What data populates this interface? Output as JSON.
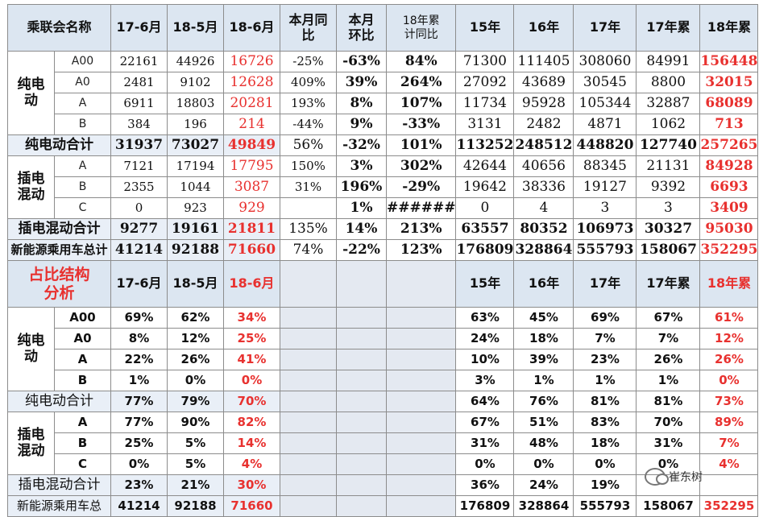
{
  "top_table": {
    "header": [
      "乘联会名称",
      "17-6月",
      "18-5月",
      "18-6月",
      "本月同\n比",
      "本月\n环比",
      "18年累\n计同比",
      "15年",
      "16年",
      "17年",
      "17年累",
      "18年累"
    ],
    "groups": [
      {
        "label": "纯电\n动",
        "rows": [
          {
            "sub": "A00",
            "values": [
              "22161",
              "44926",
              "16726",
              "-25%",
              "-63%",
              "84%",
              "71300",
              "111405",
              "308060",
              "84991",
              "156448"
            ]
          },
          {
            "sub": "A0",
            "values": [
              "2481",
              "9102",
              "12628",
              "409%",
              "39%",
              "264%",
              "27092",
              "43689",
              "30545",
              "8800",
              "32015"
            ]
          },
          {
            "sub": "A",
            "values": [
              "6911",
              "18803",
              "20281",
              "193%",
              "8%",
              "107%",
              "11734",
              "95928",
              "105344",
              "32887",
              "68089"
            ]
          },
          {
            "sub": "B",
            "values": [
              "384",
              "196",
              "214",
              "-44%",
              "9%",
              "-33%",
              "3131",
              "2482",
              "4871",
              "1062",
              "713"
            ]
          }
        ]
      }
    ],
    "bev_total": {
      "label": "纯电动合计",
      "values": [
        "31937",
        "73027",
        "49849",
        "56%",
        "-32%",
        "101%",
        "113252",
        "248512",
        "448820",
        "127740",
        "257265"
      ]
    },
    "phev": {
      "label": "插电\n混动",
      "rows": [
        {
          "sub": "A",
          "values": [
            "7121",
            "17194",
            "17795",
            "150%",
            "3%",
            "302%",
            "42644",
            "40656",
            "88345",
            "21131",
            "84928"
          ]
        },
        {
          "sub": "B",
          "values": [
            "2355",
            "1044",
            "3087",
            "31%",
            "196%",
            "-29%",
            "19642",
            "38336",
            "19127",
            "9392",
            "6693"
          ]
        },
        {
          "sub": "C",
          "values": [
            "0",
            "923",
            "929",
            "",
            "1%",
            "######",
            "0",
            "4",
            "3",
            "3",
            "3409"
          ]
        }
      ]
    },
    "phev_total": {
      "label": "插电混动合计",
      "values": [
        "9277",
        "19161",
        "21811",
        "135%",
        "14%",
        "213%",
        "63557",
        "80352",
        "106973",
        "30327",
        "95030"
      ]
    },
    "nev_total": {
      "label": "新能源乘用车总计",
      "values": [
        "41214",
        "92188",
        "71660",
        "74%",
        "-22%",
        "123%",
        "176809",
        "328864",
        "555793",
        "158067",
        "352295"
      ]
    }
  },
  "bottom_table": {
    "title": "占比结构\n分析",
    "header": [
      "17-6月",
      "18-5月",
      "18-6月",
      "15年",
      "16年",
      "17年",
      "17年累",
      "18年累"
    ],
    "bev": {
      "label": "纯电\n动",
      "rows": [
        {
          "sub": "A00",
          "a": [
            "69%",
            "62%",
            "34%"
          ],
          "b": [
            "63%",
            "45%",
            "69%",
            "67%",
            "61%"
          ]
        },
        {
          "sub": "A0",
          "a": [
            "8%",
            "12%",
            "25%"
          ],
          "b": [
            "24%",
            "18%",
            "7%",
            "7%",
            "12%"
          ]
        },
        {
          "sub": "A",
          "a": [
            "22%",
            "26%",
            "41%"
          ],
          "b": [
            "10%",
            "39%",
            "23%",
            "26%",
            "26%"
          ]
        },
        {
          "sub": "B",
          "a": [
            "1%",
            "0%",
            "0%"
          ],
          "b": [
            "3%",
            "1%",
            "1%",
            "1%",
            "0%"
          ]
        }
      ]
    },
    "bev_total": {
      "label": "纯电动合计",
      "a": [
        "77%",
        "79%",
        "70%"
      ],
      "b": [
        "64%",
        "76%",
        "81%",
        "81%",
        "73%"
      ]
    },
    "phev": {
      "label": "插电\n混动",
      "rows": [
        {
          "sub": "A",
          "a": [
            "77%",
            "90%",
            "82%"
          ],
          "b": [
            "67%",
            "51%",
            "83%",
            "70%",
            "89%"
          ]
        },
        {
          "sub": "B",
          "a": [
            "25%",
            "5%",
            "14%"
          ],
          "b": [
            "31%",
            "48%",
            "18%",
            "31%",
            "7%"
          ]
        },
        {
          "sub": "C",
          "a": [
            "0%",
            "5%",
            "4%"
          ],
          "b": [
            "0%",
            "0%",
            "0%",
            "0%",
            "4%"
          ]
        }
      ]
    },
    "phev_total": {
      "label": "插电混动合计",
      "a": [
        "23%",
        "21%",
        "30%"
      ],
      "b": [
        "36%",
        "24%",
        "19%",
        "",
        ""
      ]
    },
    "nev_total": {
      "label": "新能源乘用车总",
      "a": [
        "41214",
        "92188",
        "71660"
      ],
      "b": [
        "176809",
        "328864",
        "555793",
        "158067",
        "352295"
      ]
    }
  },
  "watermark": {
    "text": "崔东树",
    "icon": "wechat-icon"
  }
}
